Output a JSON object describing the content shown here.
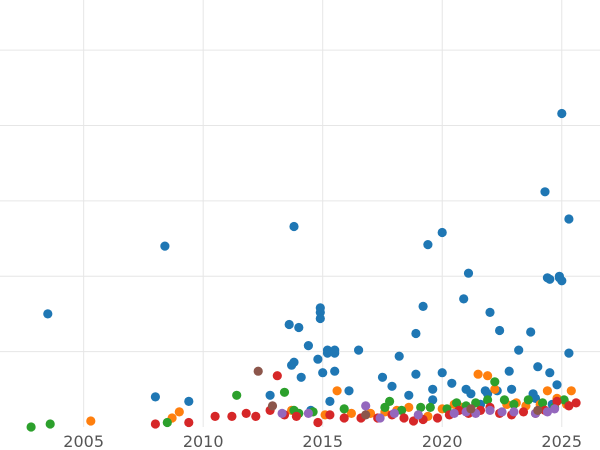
{
  "chart_data": {
    "type": "scatter",
    "title": "",
    "xlabel": "",
    "ylabel": "",
    "xlim": [
      2001.5,
      2026.6
    ],
    "ylim": [
      0,
      27
    ],
    "x_ticks": [
      2005,
      2010,
      2015,
      2020,
      2025
    ],
    "x_tick_labels": [
      "2005",
      "2010",
      "2015",
      "2020",
      "2025"
    ],
    "y_gridlines": [
      5,
      10,
      15,
      20,
      25
    ],
    "grid": true,
    "legend": "none",
    "series": [
      {
        "color": "#1f77b4",
        "points": [
          [
            2003.5,
            7.5
          ],
          [
            2008.0,
            2.0
          ],
          [
            2008.4,
            12.0
          ],
          [
            2009.4,
            1.7
          ],
          [
            2012.8,
            2.1
          ],
          [
            2013.6,
            6.8
          ],
          [
            2013.7,
            4.1
          ],
          [
            2013.8,
            13.3
          ],
          [
            2013.8,
            4.3
          ],
          [
            2014.0,
            6.6
          ],
          [
            2014.1,
            3.3
          ],
          [
            2014.4,
            5.4
          ],
          [
            2014.5,
            1.1
          ],
          [
            2014.8,
            4.5
          ],
          [
            2014.9,
            7.9
          ],
          [
            2014.9,
            7.6
          ],
          [
            2014.9,
            7.2
          ],
          [
            2015.0,
            3.6
          ],
          [
            2015.2,
            5.1
          ],
          [
            2015.2,
            4.9
          ],
          [
            2015.3,
            1.7
          ],
          [
            2015.5,
            5.1
          ],
          [
            2015.5,
            4.9
          ],
          [
            2015.5,
            3.7
          ],
          [
            2016.1,
            2.4
          ],
          [
            2016.5,
            5.1
          ],
          [
            2017.5,
            3.3
          ],
          [
            2017.9,
            2.7
          ],
          [
            2018.2,
            4.7
          ],
          [
            2018.6,
            2.1
          ],
          [
            2018.9,
            6.2
          ],
          [
            2018.9,
            3.5
          ],
          [
            2019.2,
            8.0
          ],
          [
            2019.4,
            12.1
          ],
          [
            2019.6,
            2.5
          ],
          [
            2019.6,
            1.8
          ],
          [
            2020.0,
            3.6
          ],
          [
            2020.0,
            12.9
          ],
          [
            2020.4,
            2.9
          ],
          [
            2020.9,
            8.5
          ],
          [
            2021.0,
            2.5
          ],
          [
            2021.1,
            10.2
          ],
          [
            2021.2,
            2.2
          ],
          [
            2021.6,
            1.5
          ],
          [
            2021.8,
            2.4
          ],
          [
            2021.9,
            2.2
          ],
          [
            2022.0,
            7.6
          ],
          [
            2022.3,
            2.4
          ],
          [
            2022.4,
            6.4
          ],
          [
            2022.8,
            3.7
          ],
          [
            2022.9,
            2.5
          ],
          [
            2023.2,
            5.1
          ],
          [
            2023.7,
            6.3
          ],
          [
            2023.8,
            2.2
          ],
          [
            2023.9,
            1.9
          ],
          [
            2024.0,
            4.0
          ],
          [
            2024.3,
            15.6
          ],
          [
            2024.4,
            9.9
          ],
          [
            2024.5,
            3.6
          ],
          [
            2024.5,
            9.8
          ],
          [
            2024.6,
            1.5
          ],
          [
            2024.8,
            2.8
          ],
          [
            2024.9,
            9.9
          ],
          [
            2024.9,
            10.0
          ],
          [
            2025.0,
            9.7
          ],
          [
            2025.0,
            20.8
          ],
          [
            2025.3,
            13.8
          ],
          [
            2025.3,
            4.9
          ]
        ]
      },
      {
        "color": "#ff7f0e",
        "points": [
          [
            2005.3,
            0.4
          ],
          [
            2008.7,
            0.6
          ],
          [
            2009.0,
            1.0
          ],
          [
            2013.7,
            1.1
          ],
          [
            2015.1,
            0.8
          ],
          [
            2015.6,
            2.4
          ],
          [
            2016.2,
            0.9
          ],
          [
            2017.0,
            0.9
          ],
          [
            2017.6,
            1.0
          ],
          [
            2018.1,
            1.1
          ],
          [
            2018.6,
            1.3
          ],
          [
            2019.4,
            0.7
          ],
          [
            2020.0,
            1.2
          ],
          [
            2020.5,
            1.5
          ],
          [
            2020.8,
            1.3
          ],
          [
            2021.5,
            3.5
          ],
          [
            2021.9,
            3.4
          ],
          [
            2022.2,
            2.5
          ],
          [
            2022.7,
            1.5
          ],
          [
            2023.1,
            1.6
          ],
          [
            2023.5,
            1.4
          ],
          [
            2024.1,
            1.5
          ],
          [
            2024.4,
            2.4
          ],
          [
            2024.8,
            1.9
          ],
          [
            2025.2,
            1.5
          ],
          [
            2025.4,
            2.4
          ]
        ]
      },
      {
        "color": "#2ca02c",
        "points": [
          [
            2002.8,
            0.0
          ],
          [
            2003.6,
            0.2
          ],
          [
            2008.5,
            0.3
          ],
          [
            2011.4,
            2.1
          ],
          [
            2013.4,
            2.3
          ],
          [
            2013.8,
            1.1
          ],
          [
            2014.0,
            0.9
          ],
          [
            2014.6,
            1.0
          ],
          [
            2015.9,
            1.2
          ],
          [
            2017.6,
            1.3
          ],
          [
            2017.8,
            1.7
          ],
          [
            2018.3,
            1.1
          ],
          [
            2019.1,
            1.3
          ],
          [
            2019.5,
            1.3
          ],
          [
            2020.2,
            1.2
          ],
          [
            2020.6,
            1.6
          ],
          [
            2021.0,
            1.4
          ],
          [
            2021.4,
            1.6
          ],
          [
            2021.9,
            1.8
          ],
          [
            2022.2,
            3.0
          ],
          [
            2022.6,
            1.8
          ],
          [
            2023.0,
            1.5
          ],
          [
            2023.6,
            1.8
          ],
          [
            2024.2,
            1.6
          ],
          [
            2024.7,
            1.3
          ],
          [
            2025.1,
            1.8
          ]
        ]
      },
      {
        "color": "#d62728",
        "points": [
          [
            2008.0,
            0.2
          ],
          [
            2009.4,
            0.3
          ],
          [
            2010.5,
            0.7
          ],
          [
            2011.2,
            0.7
          ],
          [
            2011.8,
            0.9
          ],
          [
            2012.2,
            0.7
          ],
          [
            2012.8,
            1.1
          ],
          [
            2013.1,
            3.4
          ],
          [
            2013.4,
            0.8
          ],
          [
            2013.9,
            0.7
          ],
          [
            2014.8,
            0.3
          ],
          [
            2015.3,
            0.8
          ],
          [
            2015.9,
            0.6
          ],
          [
            2016.6,
            0.6
          ],
          [
            2017.3,
            0.6
          ],
          [
            2017.9,
            0.8
          ],
          [
            2018.4,
            0.6
          ],
          [
            2018.8,
            0.4
          ],
          [
            2019.2,
            0.5
          ],
          [
            2019.8,
            0.6
          ],
          [
            2020.3,
            0.8
          ],
          [
            2020.7,
            1.1
          ],
          [
            2021.1,
            0.9
          ],
          [
            2021.6,
            1.1
          ],
          [
            2022.0,
            1.3
          ],
          [
            2022.4,
            0.9
          ],
          [
            2022.9,
            0.8
          ],
          [
            2023.4,
            1.0
          ],
          [
            2023.9,
            0.9
          ],
          [
            2024.3,
            1.1
          ],
          [
            2024.8,
            1.7
          ],
          [
            2025.3,
            1.4
          ],
          [
            2025.6,
            1.6
          ]
        ]
      },
      {
        "color": "#9467bd",
        "points": [
          [
            2013.3,
            0.9
          ],
          [
            2014.4,
            0.9
          ],
          [
            2016.8,
            1.4
          ],
          [
            2017.4,
            0.6
          ],
          [
            2018.0,
            0.9
          ],
          [
            2019.0,
            0.8
          ],
          [
            2020.5,
            0.9
          ],
          [
            2021.0,
            1.0
          ],
          [
            2021.4,
            0.9
          ],
          [
            2022.0,
            1.1
          ],
          [
            2022.5,
            1.0
          ],
          [
            2023.0,
            1.0
          ],
          [
            2023.9,
            0.9
          ],
          [
            2024.4,
            1.0
          ],
          [
            2024.7,
            1.2
          ]
        ]
      },
      {
        "color": "#8c564b",
        "points": [
          [
            2012.3,
            3.7
          ],
          [
            2012.9,
            1.4
          ],
          [
            2016.8,
            0.8
          ],
          [
            2021.2,
            1.2
          ],
          [
            2024.0,
            1.1
          ]
        ]
      }
    ]
  }
}
